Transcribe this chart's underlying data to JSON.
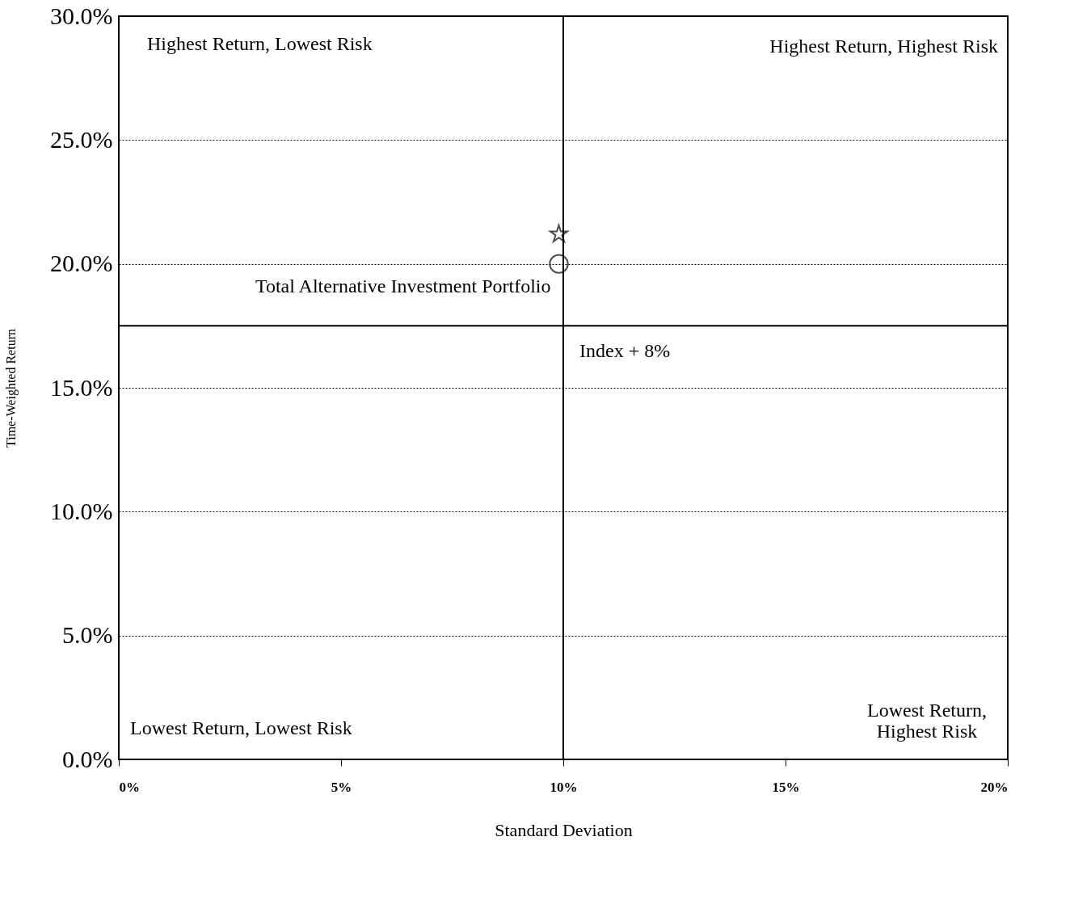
{
  "chart_data": {
    "type": "scatter",
    "xlabel": "Standard Deviation",
    "ylabel": "Time-Weighted Return",
    "xlim": [
      0,
      20
    ],
    "ylim": [
      0,
      30
    ],
    "xticks": [
      {
        "value": 0,
        "label": "0%"
      },
      {
        "value": 5,
        "label": "5%"
      },
      {
        "value": 10,
        "label": "10%"
      },
      {
        "value": 15,
        "label": "15%"
      },
      {
        "value": 20,
        "label": "20%"
      }
    ],
    "yticks": [
      {
        "value": 0,
        "label": "0.0%"
      },
      {
        "value": 5,
        "label": "5.0%"
      },
      {
        "value": 10,
        "label": "10.0%"
      },
      {
        "value": 15,
        "label": "15.0%"
      },
      {
        "value": 20,
        "label": "20.0%"
      },
      {
        "value": 25,
        "label": "25.0%"
      },
      {
        "value": 30,
        "label": "30.0%"
      }
    ],
    "grid": "y",
    "series": [
      {
        "color": "#000000",
        "marker": "star",
        "x": [
          9.9
        ],
        "values": [
          21.2
        ]
      },
      {
        "name": "Total Alternative Investment Portfolio",
        "color": "#000000",
        "marker": "circle",
        "x": [
          9.9
        ],
        "values": [
          20.0
        ]
      }
    ],
    "ref_lines": [
      {
        "axis": "x",
        "value": 10,
        "label": null
      },
      {
        "axis": "y",
        "value": 17.5,
        "label": "Index + 8%"
      }
    ],
    "annotations": [
      "Highest Return, Lowest Risk",
      "Highest Return, Highest Risk",
      "Lowest Return, Lowest Risk",
      "Lowest Return, Highest Risk"
    ]
  }
}
